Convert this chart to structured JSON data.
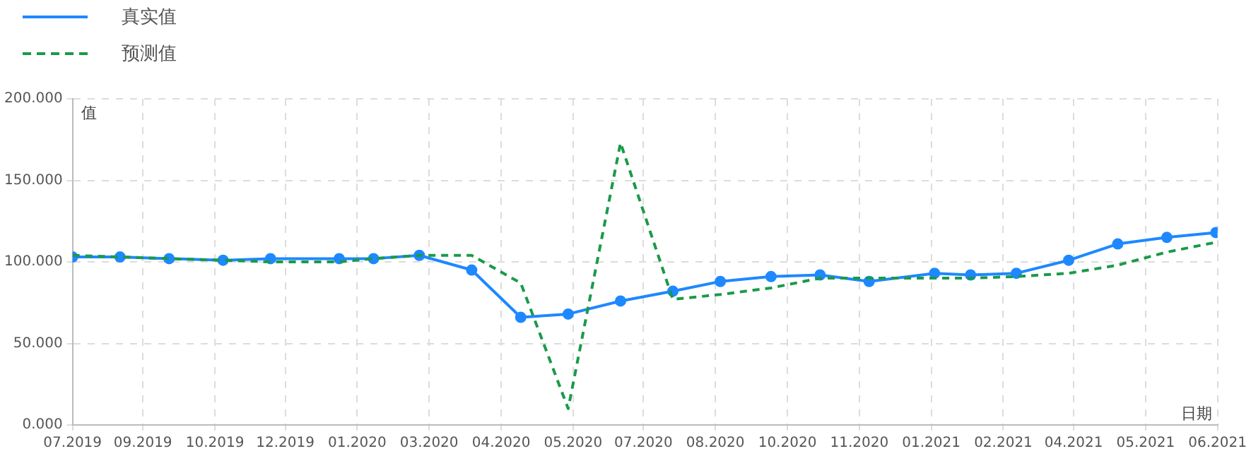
{
  "chart_data": {
    "type": "line",
    "xlabel": "日期",
    "ylabel": "值",
    "x": [
      "2019-07-29",
      "2019-08-27",
      "2019-09-26",
      "2019-10-29",
      "2019-11-27",
      "2020-01-08",
      "2020-01-29",
      "2020-02-26",
      "2020-03-29",
      "2020-04-28",
      "2020-05-27",
      "2020-06-28",
      "2020-07-30",
      "2020-08-28",
      "2020-09-28",
      "2020-10-28",
      "2020-11-27",
      "2021-01-06",
      "2021-01-28",
      "2021-02-25",
      "2021-03-29",
      "2021-04-28",
      "2021-05-28",
      "2021-06-27"
    ],
    "series": [
      {
        "name": "真实值",
        "color": "#1e88ff",
        "marker": "circle",
        "line_style": "solid",
        "values": [
          103,
          103,
          102,
          101,
          102,
          102,
          102,
          104,
          95,
          66,
          68,
          76,
          82,
          88,
          91,
          92,
          88,
          93,
          92,
          93,
          101,
          111,
          115,
          118
        ]
      },
      {
        "name": "预测值",
        "color": "#1a9a4a",
        "marker": "none",
        "line_style": "dashed",
        "values": [
          104,
          103,
          102,
          101,
          100,
          100,
          102,
          104,
          104,
          87,
          10,
          173,
          77,
          80,
          84,
          90,
          90,
          90,
          90,
          91,
          93,
          98,
          106,
          112
        ]
      }
    ],
    "xlim": [
      "2019-07-29",
      "2021-06-28"
    ],
    "xticks": [
      {
        "value": "2019-07-29",
        "label": "07.2019"
      },
      {
        "value": "2019-09-10",
        "label": "09.2019"
      },
      {
        "value": "2019-10-24",
        "label": "10.2019"
      },
      {
        "value": "2019-12-06",
        "label": "12.2019"
      },
      {
        "value": "2020-01-19",
        "label": "01.2020"
      },
      {
        "value": "2020-03-03",
        "label": "03.2020"
      },
      {
        "value": "2020-04-16",
        "label": "04.2020"
      },
      {
        "value": "2020-05-30",
        "label": "05.2020"
      },
      {
        "value": "2020-07-12",
        "label": "07.2020"
      },
      {
        "value": "2020-08-25",
        "label": "08.2020"
      },
      {
        "value": "2020-10-08",
        "label": "10.2020"
      },
      {
        "value": "2020-11-21",
        "label": "11.2020"
      },
      {
        "value": "2021-01-04",
        "label": "01.2021"
      },
      {
        "value": "2021-02-17",
        "label": "02.2021"
      },
      {
        "value": "2021-04-01",
        "label": "04.2021"
      },
      {
        "value": "2021-05-15",
        "label": "05.2021"
      },
      {
        "value": "2021-06-28",
        "label": "06.2021"
      }
    ],
    "ylim": [
      0,
      200
    ],
    "yticks": [
      {
        "value": 0,
        "label": "0.000"
      },
      {
        "value": 50,
        "label": "50.000"
      },
      {
        "value": 100,
        "label": "100.000"
      },
      {
        "value": 150,
        "label": "150.000"
      },
      {
        "value": 200,
        "label": "200.000"
      }
    ],
    "grid": true,
    "legend": "top left"
  }
}
